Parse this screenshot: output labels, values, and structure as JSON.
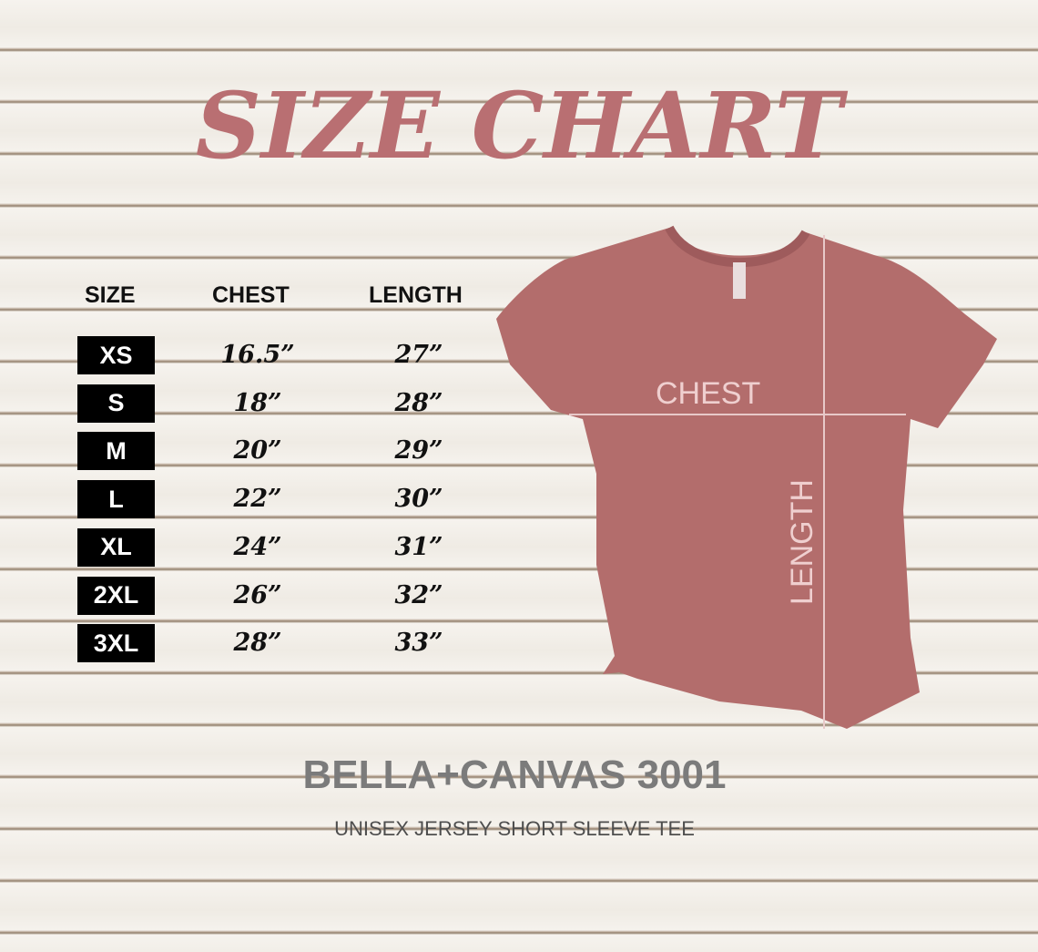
{
  "title": "SIZE CHART",
  "table": {
    "headers": [
      "SIZE",
      "CHEST",
      "LENGTH"
    ],
    "rows": [
      {
        "size": "XS",
        "chest": "16.5”",
        "length": "27”"
      },
      {
        "size": "S",
        "chest": "18”",
        "length": "28”"
      },
      {
        "size": "M",
        "chest": "20”",
        "length": "29”"
      },
      {
        "size": "L",
        "chest": "22”",
        "length": "30”"
      },
      {
        "size": "XL",
        "chest": "24”",
        "length": "31”"
      },
      {
        "size": "2XL",
        "chest": "26”",
        "length": "32”"
      },
      {
        "size": "3XL",
        "chest": "28”",
        "length": "33”"
      }
    ]
  },
  "shirt": {
    "chest_label": "CHEST",
    "length_label": "LENGTH",
    "color": "#b36d6c"
  },
  "brand": "BELLA+CANVAS 3001",
  "subtitle": "UNISEX JERSEY SHORT SLEEVE TEE"
}
